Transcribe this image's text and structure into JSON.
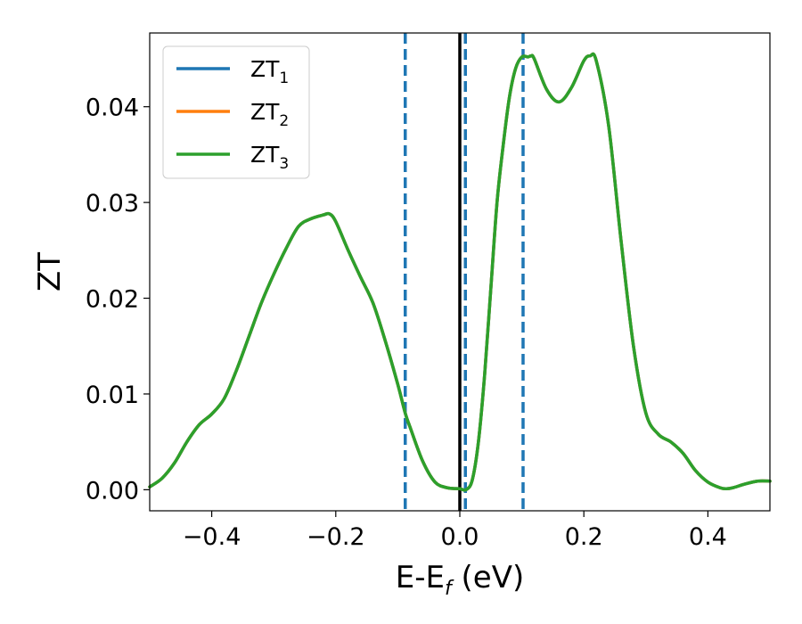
{
  "chart_data": {
    "type": "line",
    "xlabel": {
      "main": "E-E",
      "sub": "f",
      "suffix": " (eV)"
    },
    "ylabel": "ZT",
    "xlim": [
      -0.5,
      0.5
    ],
    "ylim": [
      -0.0022,
      0.0477
    ],
    "xticks": [
      -0.4,
      -0.2,
      0.0,
      0.2,
      0.4
    ],
    "xtick_labels": [
      "−0.4",
      "−0.2",
      "0.0",
      "0.2",
      "0.4"
    ],
    "yticks": [
      0.0,
      0.01,
      0.02,
      0.03,
      0.04
    ],
    "ytick_labels": [
      "0.00",
      "0.01",
      "0.02",
      "0.03",
      "0.04"
    ],
    "grid": false,
    "legend_position": "top-left",
    "vertical_lines": [
      {
        "x": 0.0,
        "style": "solid",
        "color": "#000000"
      },
      {
        "x": -0.088,
        "style": "dashed",
        "color": "#1f77b4"
      },
      {
        "x": 0.009,
        "style": "dashed",
        "color": "#1f77b4"
      },
      {
        "x": 0.102,
        "style": "dashed",
        "color": "#1f77b4"
      }
    ],
    "x": [
      -0.5,
      -0.48,
      -0.46,
      -0.44,
      -0.42,
      -0.4,
      -0.38,
      -0.36,
      -0.34,
      -0.32,
      -0.3,
      -0.28,
      -0.26,
      -0.24,
      -0.22,
      -0.21,
      -0.2,
      -0.18,
      -0.16,
      -0.14,
      -0.12,
      -0.1,
      -0.088,
      -0.08,
      -0.06,
      -0.04,
      -0.02,
      0.0,
      0.01,
      0.02,
      0.03,
      0.04,
      0.05,
      0.06,
      0.07,
      0.08,
      0.09,
      0.1,
      0.11,
      0.115,
      0.12,
      0.14,
      0.16,
      0.18,
      0.2,
      0.21,
      0.22,
      0.24,
      0.26,
      0.28,
      0.3,
      0.32,
      0.34,
      0.36,
      0.38,
      0.4,
      0.42,
      0.43,
      0.44,
      0.46,
      0.48,
      0.5
    ],
    "series": [
      {
        "name": "ZT1",
        "label_main": "ZT",
        "label_sub": "1",
        "color": "#1f77b4",
        "values": [
          0.0003,
          0.0012,
          0.0028,
          0.005,
          0.0068,
          0.0079,
          0.0095,
          0.0125,
          0.016,
          0.0195,
          0.0225,
          0.0252,
          0.0275,
          0.0283,
          0.0287,
          0.0288,
          0.028,
          0.025,
          0.0222,
          0.0195,
          0.0155,
          0.011,
          0.008,
          0.0065,
          0.003,
          0.0008,
          0.0002,
          0.0001,
          0.0,
          0.001,
          0.005,
          0.012,
          0.021,
          0.03,
          0.036,
          0.041,
          0.044,
          0.0452,
          0.0452,
          0.0453,
          0.045,
          0.0418,
          0.0405,
          0.042,
          0.0448,
          0.0453,
          0.0448,
          0.038,
          0.026,
          0.015,
          0.008,
          0.0058,
          0.005,
          0.0038,
          0.002,
          0.0008,
          0.0002,
          0.0001,
          0.0002,
          0.0006,
          0.0009,
          0.0009
        ]
      },
      {
        "name": "ZT2",
        "label_main": "ZT",
        "label_sub": "2",
        "color": "#ff7f0e",
        "values": [
          0.0003,
          0.0012,
          0.0028,
          0.005,
          0.0068,
          0.0079,
          0.0095,
          0.0125,
          0.016,
          0.0195,
          0.0225,
          0.0252,
          0.0275,
          0.0283,
          0.0287,
          0.0288,
          0.028,
          0.025,
          0.0222,
          0.0195,
          0.0155,
          0.011,
          0.008,
          0.0065,
          0.003,
          0.0008,
          0.0002,
          0.0001,
          0.0,
          0.001,
          0.005,
          0.012,
          0.021,
          0.03,
          0.036,
          0.041,
          0.044,
          0.0452,
          0.0452,
          0.0453,
          0.045,
          0.0418,
          0.0405,
          0.042,
          0.0448,
          0.0453,
          0.0448,
          0.038,
          0.026,
          0.015,
          0.008,
          0.0058,
          0.005,
          0.0038,
          0.002,
          0.0008,
          0.0002,
          0.0001,
          0.0002,
          0.0006,
          0.0009,
          0.0009
        ]
      },
      {
        "name": "ZT3",
        "label_main": "ZT",
        "label_sub": "3",
        "color": "#2ca02c",
        "values": [
          0.0003,
          0.0012,
          0.0028,
          0.005,
          0.0068,
          0.0079,
          0.0095,
          0.0125,
          0.016,
          0.0195,
          0.0225,
          0.0252,
          0.0275,
          0.0283,
          0.0287,
          0.0288,
          0.028,
          0.025,
          0.0222,
          0.0195,
          0.0155,
          0.011,
          0.008,
          0.0065,
          0.003,
          0.0008,
          0.0002,
          0.0001,
          0.0,
          0.001,
          0.005,
          0.012,
          0.021,
          0.03,
          0.036,
          0.041,
          0.044,
          0.0452,
          0.0452,
          0.0453,
          0.045,
          0.0418,
          0.0405,
          0.042,
          0.0448,
          0.0453,
          0.0448,
          0.038,
          0.026,
          0.015,
          0.008,
          0.0058,
          0.005,
          0.0038,
          0.002,
          0.0008,
          0.0002,
          0.0001,
          0.0002,
          0.0006,
          0.0009,
          0.0009
        ]
      }
    ]
  }
}
